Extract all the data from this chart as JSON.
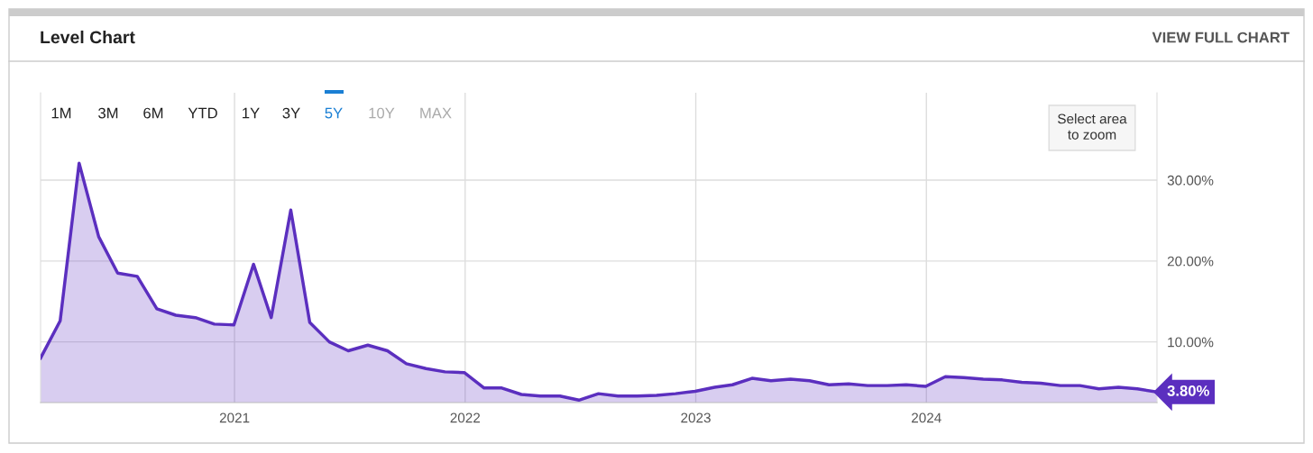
{
  "chart_data": {
    "type": "area",
    "title": "Level Chart",
    "x": [
      "2020-02-29",
      "2020-03-31",
      "2020-04-30",
      "2020-05-31",
      "2020-06-30",
      "2020-07-31",
      "2020-08-31",
      "2020-09-30",
      "2020-10-31",
      "2020-11-30",
      "2020-12-31",
      "2021-01-31",
      "2021-02-28",
      "2021-03-31",
      "2021-04-30",
      "2021-05-31",
      "2021-06-30",
      "2021-07-31",
      "2021-08-31",
      "2021-09-30",
      "2021-10-31",
      "2021-11-30",
      "2021-12-31",
      "2022-01-31",
      "2022-02-28",
      "2022-03-31",
      "2022-04-30",
      "2022-05-31",
      "2022-06-30",
      "2022-07-31",
      "2022-08-31",
      "2022-09-30",
      "2022-10-31",
      "2022-11-30",
      "2022-12-31",
      "2023-01-31",
      "2023-02-28",
      "2023-03-31",
      "2023-04-30",
      "2023-05-31",
      "2023-06-30",
      "2023-07-31",
      "2023-08-31",
      "2023-09-30",
      "2023-10-31",
      "2023-11-30",
      "2023-12-31",
      "2024-01-31",
      "2024-02-29",
      "2024-03-31",
      "2024-04-30",
      "2024-05-31",
      "2024-06-30",
      "2024-07-31",
      "2024-08-31",
      "2024-09-30",
      "2024-10-31",
      "2024-11-30",
      "2024-12-31"
    ],
    "series": [
      {
        "color": "#5b2fbf",
        "values": [
          8.0,
          12.6,
          32.1,
          23.0,
          18.5,
          18.1,
          14.1,
          13.3,
          13.0,
          12.2,
          12.1,
          19.6,
          13.0,
          26.3,
          12.4,
          10.0,
          8.9,
          9.6,
          8.9,
          7.3,
          6.7,
          6.3,
          6.2,
          4.3,
          4.3,
          3.5,
          3.3,
          3.3,
          2.8,
          3.6,
          3.3,
          3.3,
          3.4,
          3.6,
          3.9,
          4.4,
          4.7,
          5.5,
          5.2,
          5.4,
          5.2,
          4.7,
          4.8,
          4.6,
          4.6,
          4.7,
          4.5,
          5.7,
          5.6,
          5.4,
          5.3,
          5.0,
          4.9,
          4.6,
          4.6,
          4.2,
          4.4,
          4.2,
          3.8
        ]
      }
    ],
    "xlim": [
      "2020-02-29",
      "2024-12-31"
    ],
    "xticks": [
      {
        "value": "2021-01-01",
        "label": "2021"
      },
      {
        "value": "2022-01-01",
        "label": "2022"
      },
      {
        "value": "2023-01-01",
        "label": "2023"
      },
      {
        "value": "2024-01-01",
        "label": "2024"
      }
    ],
    "ylim": [
      2.5,
      40.8
    ],
    "yticks": [
      {
        "value": 10,
        "label": "10.00%"
      },
      {
        "value": 20,
        "label": "20.00%"
      },
      {
        "value": 30,
        "label": "30.00%"
      }
    ],
    "grid": true,
    "legend": false,
    "annotations": [
      "VIEW FULL CHART",
      "1M",
      "3M",
      "6M",
      "YTD",
      "1Y",
      "3Y",
      "5Y",
      "10Y",
      "MAX",
      "Select area\nto zoom",
      {
        "text": "3.80%",
        "x": "2024-12-31",
        "y": 3.8
      }
    ]
  }
}
